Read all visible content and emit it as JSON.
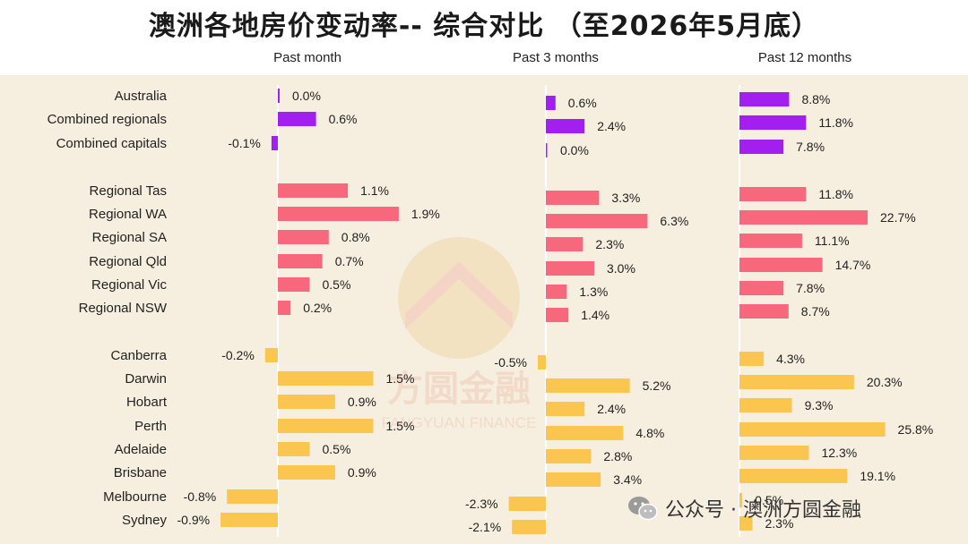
{
  "title": "澳洲各地房价变动率-- 综合对比 （至2026年5月底）",
  "watermark": {
    "brand_cn": "方圆金融",
    "brand_en": "FANGYUAN FINANCE",
    "footer_text": "公众号 · 澳洲方圆金融"
  },
  "colors": {
    "purple": "#a31ff0",
    "pink": "#f7687c",
    "yellow": "#fbc64f",
    "panel": "#f6efe0"
  },
  "chart_data": {
    "type": "bar",
    "orientation": "horizontal",
    "title": "澳洲各地房价变动率-- 综合对比 （至2026年5月底）",
    "panels": [
      "Past month",
      "Past 3 months",
      "Past 12 months"
    ],
    "categories": [
      "Australia",
      "Combined regionals",
      "Combined capitals",
      "Regional Tas",
      "Regional WA",
      "Regional SA",
      "Regional Qld",
      "Regional Vic",
      "Regional NSW",
      "Canberra",
      "Darwin",
      "Hobart",
      "Perth",
      "Adelaide",
      "Brisbane",
      "Melbourne",
      "Sydney"
    ],
    "groups": [
      "purple",
      "purple",
      "purple",
      "pink",
      "pink",
      "pink",
      "pink",
      "pink",
      "pink",
      "yellow",
      "yellow",
      "yellow",
      "yellow",
      "yellow",
      "yellow",
      "yellow",
      "yellow"
    ],
    "series": [
      {
        "values": [
          0.0,
          0.6,
          -0.1,
          1.1,
          1.9,
          0.8,
          0.7,
          0.5,
          0.2,
          -0.2,
          1.5,
          0.9,
          1.5,
          0.5,
          0.9,
          -0.8,
          -0.9
        ]
      },
      {
        "values": [
          0.6,
          2.4,
          0.0,
          3.3,
          6.3,
          2.3,
          3.0,
          1.3,
          1.4,
          -0.5,
          5.2,
          2.4,
          4.8,
          2.8,
          3.4,
          -2.3,
          -2.1
        ]
      },
      {
        "values": [
          8.8,
          11.8,
          7.8,
          11.8,
          22.7,
          11.1,
          14.7,
          7.8,
          8.7,
          4.3,
          20.3,
          9.3,
          25.8,
          12.3,
          19.1,
          0.5,
          2.3
        ]
      }
    ],
    "value_labels": [
      [
        "0.0%",
        "0.6%",
        "-0.1%",
        "1.1%",
        "1.9%",
        "0.8%",
        "0.7%",
        "0.5%",
        "0.2%",
        "-0.2%",
        "1.5%",
        "0.9%",
        "1.5%",
        "0.5%",
        "0.9%",
        "-0.8%",
        "-0.9%"
      ],
      [
        "0.6%",
        "2.4%",
        "0.0%",
        "3.3%",
        "6.3%",
        "2.3%",
        "3.0%",
        "1.3%",
        "1.4%",
        "-0.5%",
        "5.2%",
        "2.4%",
        "4.8%",
        "2.8%",
        "3.4%",
        "-2.3%",
        "-2.1%"
      ],
      [
        "8.8%",
        "11.8%",
        "7.8%",
        "11.8%",
        "22.7%",
        "11.1%",
        "14.7%",
        "7.8%",
        "8.7%",
        "4.3%",
        "20.3%",
        "9.3%",
        "25.8%",
        "12.3%",
        "19.1%",
        "0.5%",
        "2.3%"
      ]
    ],
    "xlabel": "",
    "ylabel": "",
    "grid": false,
    "legend": "none"
  }
}
